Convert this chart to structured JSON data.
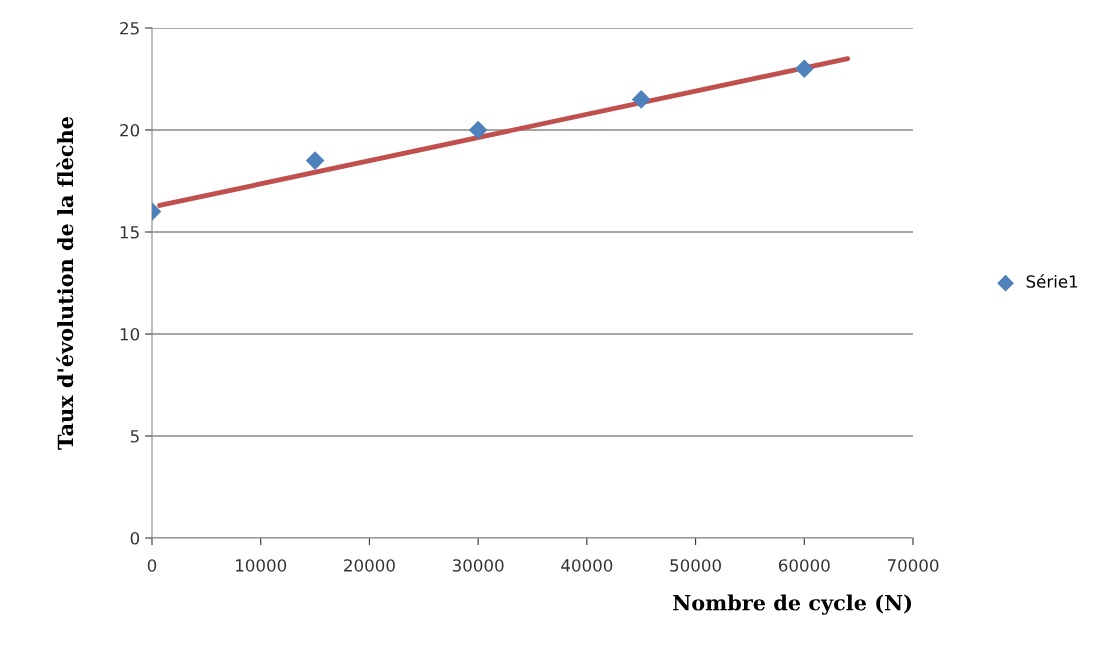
{
  "chart_data": {
    "type": "scatter",
    "xlabel": "Nombre de cycle (N)",
    "ylabel": "Taux d'évolution de la flèche",
    "x": [
      0,
      15000,
      30000,
      45000,
      60000
    ],
    "series": [
      {
        "name": "Série1",
        "color": "#4f81bd",
        "values": [
          16,
          18.5,
          20,
          21.5,
          23
        ],
        "marker": "diamond"
      },
      {
        "type": "line",
        "color": "#c0504d",
        "x": [
          700,
          64000
        ],
        "values": [
          16.3,
          23.5
        ]
      }
    ],
    "xlim": [
      0,
      70000
    ],
    "xticks": [
      0,
      10000,
      20000,
      30000,
      40000,
      50000,
      60000,
      70000
    ],
    "ylim": [
      0,
      25
    ],
    "yticks": [
      0,
      5,
      10,
      15,
      20,
      25
    ],
    "grid": "y",
    "legend": "right"
  }
}
